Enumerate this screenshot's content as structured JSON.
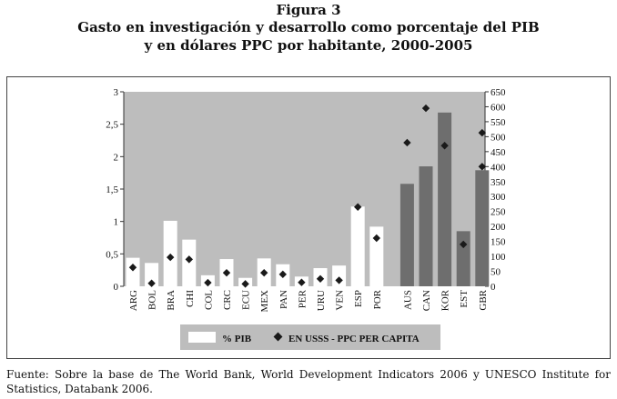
{
  "figure": {
    "label": "Figura 3",
    "title_line1": "Gasto en investigación y desarrollo como porcentaje del PIB",
    "title_line2": "y en dólares PPC por habitante, 2000-2005"
  },
  "chart_data": {
    "type": "bar",
    "categories": [
      "ARG",
      "BOL",
      "BRA",
      "CHI",
      "COL",
      "CRC",
      "ECU",
      "MEX",
      "PAN",
      "PER",
      "URU",
      "VEN",
      "ESP",
      "POR",
      "AUS",
      "CAN",
      "KOR",
      "EST",
      "GBR"
    ],
    "groups": {
      "latin_iberia": [
        "ARG",
        "BOL",
        "BRA",
        "CHI",
        "COL",
        "CRC",
        "ECU",
        "MEX",
        "PAN",
        "PER",
        "URU",
        "VEN",
        "ESP",
        "POR"
      ],
      "oecd": [
        "AUS",
        "CAN",
        "KOR",
        "EST",
        "GBR"
      ]
    },
    "series": [
      {
        "name": "% PIB",
        "axis": "left",
        "style": "bar",
        "values": [
          0.44,
          0.36,
          1.01,
          0.72,
          0.17,
          0.42,
          0.13,
          0.43,
          0.34,
          0.15,
          0.28,
          0.32,
          1.23,
          0.92,
          1.58,
          1.85,
          2.68,
          0.85,
          1.79
        ]
      },
      {
        "name": "EN USSS - PPC PER CAPITA",
        "axis": "right",
        "style": "marker",
        "values": [
          63,
          10,
          97,
          90,
          12,
          45,
          8,
          45,
          40,
          13,
          25,
          20,
          265,
          161,
          480,
          595,
          470,
          140,
          400
        ],
        "extra_points": [
          {
            "category": "GBR",
            "value": 513
          }
        ]
      }
    ],
    "y_left": {
      "min": 0,
      "max": 3,
      "ticks": [
        "0",
        "0,5",
        "1",
        "1,5",
        "2",
        "2,5",
        "3"
      ]
    },
    "y_right": {
      "min": 0,
      "max": 650,
      "ticks": [
        "0",
        "50",
        "100",
        "150",
        "200",
        "250",
        "300",
        "350",
        "400",
        "450",
        "500",
        "550",
        "600",
        "650"
      ]
    },
    "grid": false,
    "legend_position": "bottom-center",
    "colors": {
      "plot_bg": "#bdbdbd",
      "bar_latin": "#ffffff",
      "bar_oecd": "#6e6e6e",
      "marker": "#1a1a1a",
      "legend_bg": "#bdbdbd"
    }
  },
  "legend": {
    "bar_label": "% PIB",
    "marker_label": "EN USSS - PPC PER CAPITA"
  },
  "source": {
    "text": "Fuente: Sobre la base de The World Bank, World Development Indicators 2006 y UNESCO Institute for Statistics, Databank 2006."
  }
}
